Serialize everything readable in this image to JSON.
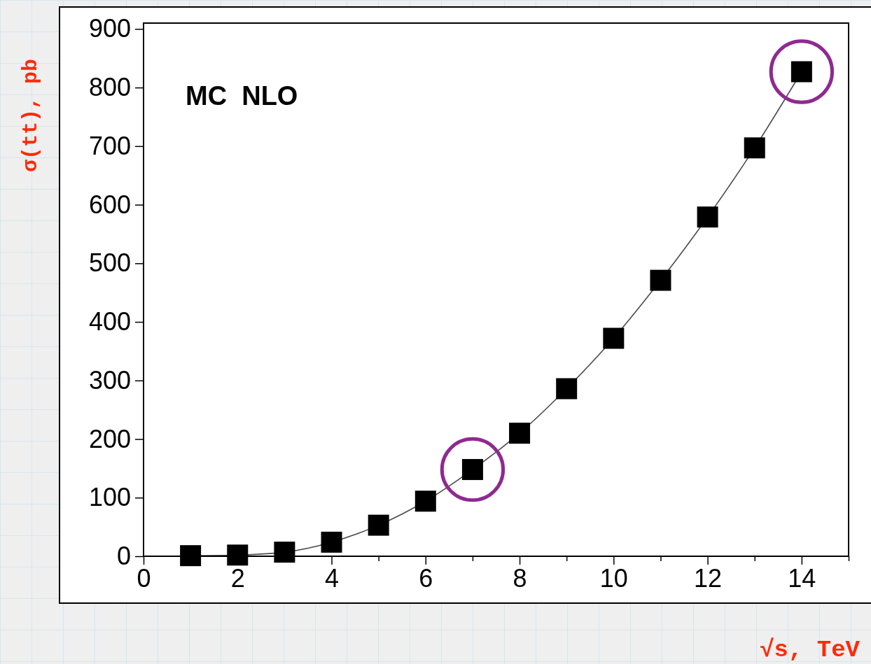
{
  "chart_data": {
    "type": "line",
    "xlabel": "√s, TeV",
    "ylabel": "σ(tt), pb",
    "annotations": [
      "MC  NLO"
    ],
    "x": [
      1,
      2,
      3,
      4,
      5,
      6,
      7,
      8,
      9,
      10,
      11,
      12,
      13,
      14
    ],
    "series": [
      {
        "type": "line",
        "color": "#000000",
        "marker": "square",
        "values": [
          1,
          2,
          7,
          24,
          53,
          94,
          148,
          210,
          286,
          372,
          471,
          579,
          697,
          827
        ]
      },
      {
        "type": "scatter",
        "color": "#8e2a90",
        "marker": "circle",
        "x": [
          7,
          14
        ],
        "values": [
          148,
          827
        ]
      }
    ],
    "xlim": [
      0,
      15
    ],
    "ylim": [
      0,
      910
    ],
    "xticks": [
      0,
      {
        "value": 1,
        "label": null
      },
      2,
      {
        "value": 3,
        "label": null
      },
      4,
      {
        "value": 5,
        "label": null
      },
      6,
      {
        "value": 7,
        "label": null
      },
      8,
      {
        "value": 9,
        "label": null
      },
      10,
      {
        "value": 11,
        "label": null
      },
      12,
      {
        "value": 13,
        "label": null
      },
      14,
      {
        "value": 15,
        "label": null
      }
    ],
    "yticks": [
      0,
      100,
      200,
      300,
      400,
      500,
      600,
      700,
      800,
      900
    ],
    "grid": false,
    "legend": false
  }
}
